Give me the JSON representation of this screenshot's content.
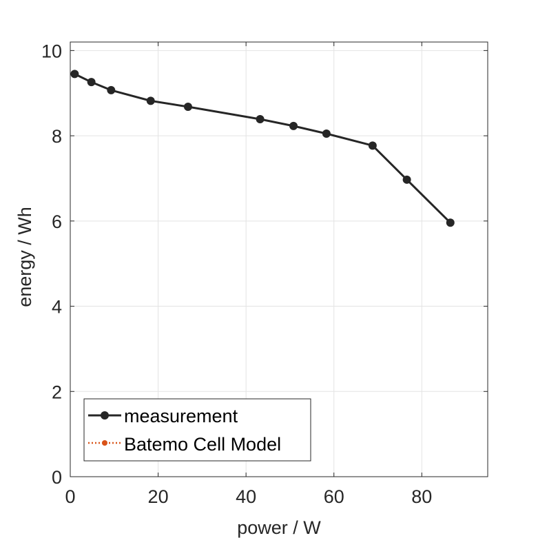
{
  "chart_data": {
    "type": "line",
    "xlabel": "power / W",
    "ylabel": "energy / Wh",
    "xlim": [
      0,
      95
    ],
    "ylim": [
      0,
      10.2
    ],
    "xticks": [
      0,
      20,
      40,
      60,
      80
    ],
    "yticks": [
      0,
      2,
      4,
      6,
      8,
      10
    ],
    "xtick_labels": [
      "0",
      "20",
      "40",
      "60",
      "80"
    ],
    "ytick_labels": [
      "0",
      "2",
      "4",
      "6",
      "8",
      "10"
    ],
    "grid": true,
    "legend_position": "bottom-left",
    "series": [
      {
        "name": "measurement",
        "color": "#262626",
        "line_style": "solid",
        "marker": "circle",
        "x": [
          1.0,
          4.8,
          9.3,
          18.3,
          26.8,
          43.2,
          50.8,
          58.3,
          68.8,
          76.6,
          86.5
        ],
        "y": [
          9.45,
          9.26,
          9.07,
          8.82,
          8.68,
          8.39,
          8.23,
          8.05,
          7.77,
          6.97,
          5.96
        ]
      },
      {
        "name": "Batemo Cell Model",
        "color": "#D95319",
        "line_style": "dotted",
        "marker": "circle",
        "x": [],
        "y": []
      }
    ]
  }
}
